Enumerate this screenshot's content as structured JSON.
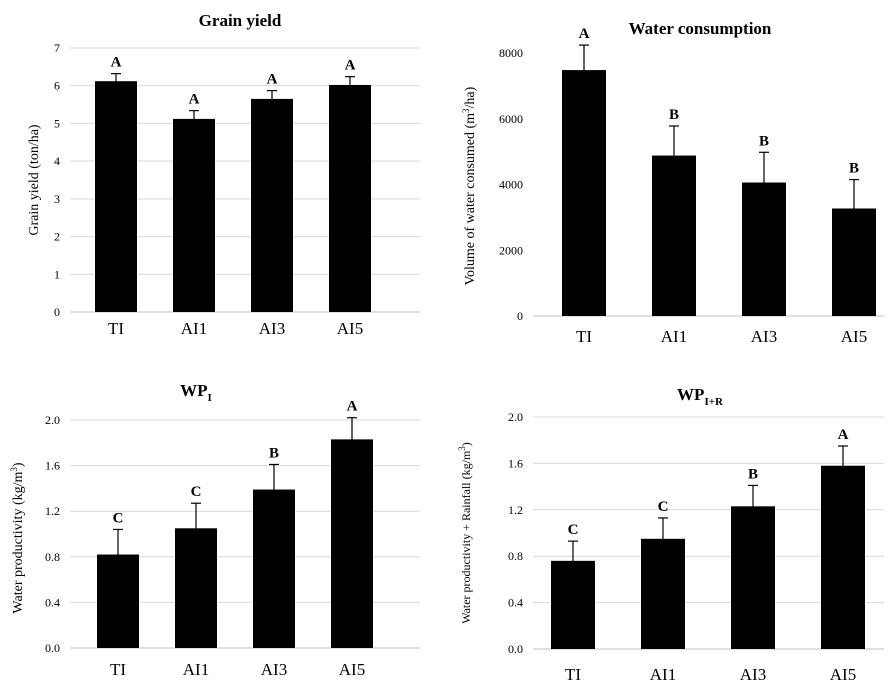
{
  "chart_data": [
    {
      "type": "bar",
      "title": "Grain yield",
      "title_sub": "",
      "ylabel": "Grain yield (ton/ha)",
      "ylabel_sup": "",
      "ylabel_suffix": "",
      "categories": [
        "TI",
        "AI1",
        "AI3",
        "AI5"
      ],
      "values": [
        6.12,
        5.12,
        5.65,
        6.02
      ],
      "errors": [
        0.2,
        0.22,
        0.22,
        0.22
      ],
      "labels": [
        "A",
        "A",
        "A",
        "A"
      ],
      "ylim": [
        0,
        7
      ],
      "yticks": [
        0,
        1,
        2,
        3,
        4,
        5,
        6,
        7
      ],
      "ytick_decimals": 0,
      "grid": true,
      "bar_color": "#000000",
      "grid_color": "#d9d9d9"
    },
    {
      "type": "bar",
      "title": "Water consumption",
      "title_sub": "",
      "ylabel": "Volume of water consumed (m",
      "ylabel_sup": "3",
      "ylabel_suffix": "/ha)",
      "categories": [
        "TI",
        "AI1",
        "AI3",
        "AI5"
      ],
      "values": [
        7480,
        4880,
        4060,
        3270
      ],
      "errors": [
        760,
        900,
        920,
        880
      ],
      "labels": [
        "A",
        "B",
        "B",
        "B"
      ],
      "ylim": [
        0,
        8000
      ],
      "yticks": [
        0,
        2000,
        4000,
        6000,
        8000
      ],
      "ytick_decimals": 0,
      "grid": false,
      "bar_color": "#000000",
      "grid_color": "#d9d9d9"
    },
    {
      "type": "bar",
      "title": "WP",
      "title_sub": "I",
      "ylabel": "Water productivity (kg/m",
      "ylabel_sup": "3",
      "ylabel_suffix": ")",
      "categories": [
        "TI",
        "AI1",
        "AI3",
        "AI5"
      ],
      "values": [
        0.82,
        1.05,
        1.39,
        1.83
      ],
      "errors": [
        0.22,
        0.22,
        0.22,
        0.19
      ],
      "labels": [
        "C",
        "C",
        "B",
        "A"
      ],
      "ylim": [
        0,
        2.0
      ],
      "yticks": [
        0.0,
        0.4,
        0.8,
        1.2,
        1.6,
        2.0
      ],
      "ytick_decimals": 1,
      "grid": true,
      "bar_color": "#000000",
      "grid_color": "#d9d9d9"
    },
    {
      "type": "bar",
      "title": "WP",
      "title_sub": "I+R",
      "ylabel": "Water productivity + Rainfall (kg/m",
      "ylabel_sup": "3",
      "ylabel_suffix": ")",
      "categories": [
        "TI",
        "AI1",
        "AI3",
        "AI5"
      ],
      "values": [
        0.76,
        0.95,
        1.23,
        1.58
      ],
      "errors": [
        0.17,
        0.18,
        0.18,
        0.17
      ],
      "labels": [
        "C",
        "C",
        "B",
        "A"
      ],
      "ylim": [
        0,
        2.0
      ],
      "yticks": [
        0.0,
        0.4,
        0.8,
        1.2,
        1.6,
        2.0
      ],
      "ytick_decimals": 1,
      "grid": true,
      "bar_color": "#000000",
      "grid_color": "#d9d9d9"
    }
  ]
}
